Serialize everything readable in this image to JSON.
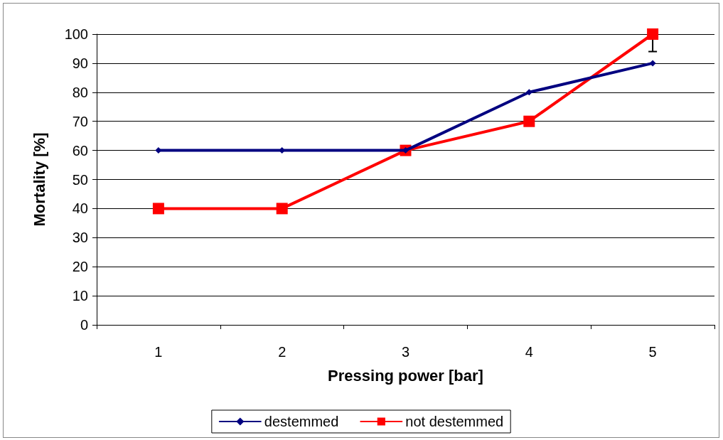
{
  "chart_data": {
    "type": "line",
    "xlabel": "Pressing power [bar]",
    "ylabel": "Mortality [%]",
    "categories": [
      "1",
      "2",
      "3",
      "4",
      "5"
    ],
    "series": [
      {
        "name": "destemmed",
        "color": "#000080",
        "values": [
          60,
          60,
          60,
          80,
          90
        ],
        "marker": "diamond"
      },
      {
        "name": "not destemmed",
        "color": "#ff0000",
        "values": [
          40,
          40,
          60,
          70,
          100
        ],
        "marker": "square",
        "errors": [
          null,
          null,
          null,
          null,
          [
            94,
            100
          ]
        ]
      }
    ],
    "ylim": [
      0,
      100
    ],
    "yticks": [
      0,
      10,
      20,
      30,
      40,
      50,
      60,
      70,
      80,
      90,
      100
    ],
    "grid": "y",
    "legend": "bottom",
    "line_style": "solid"
  }
}
